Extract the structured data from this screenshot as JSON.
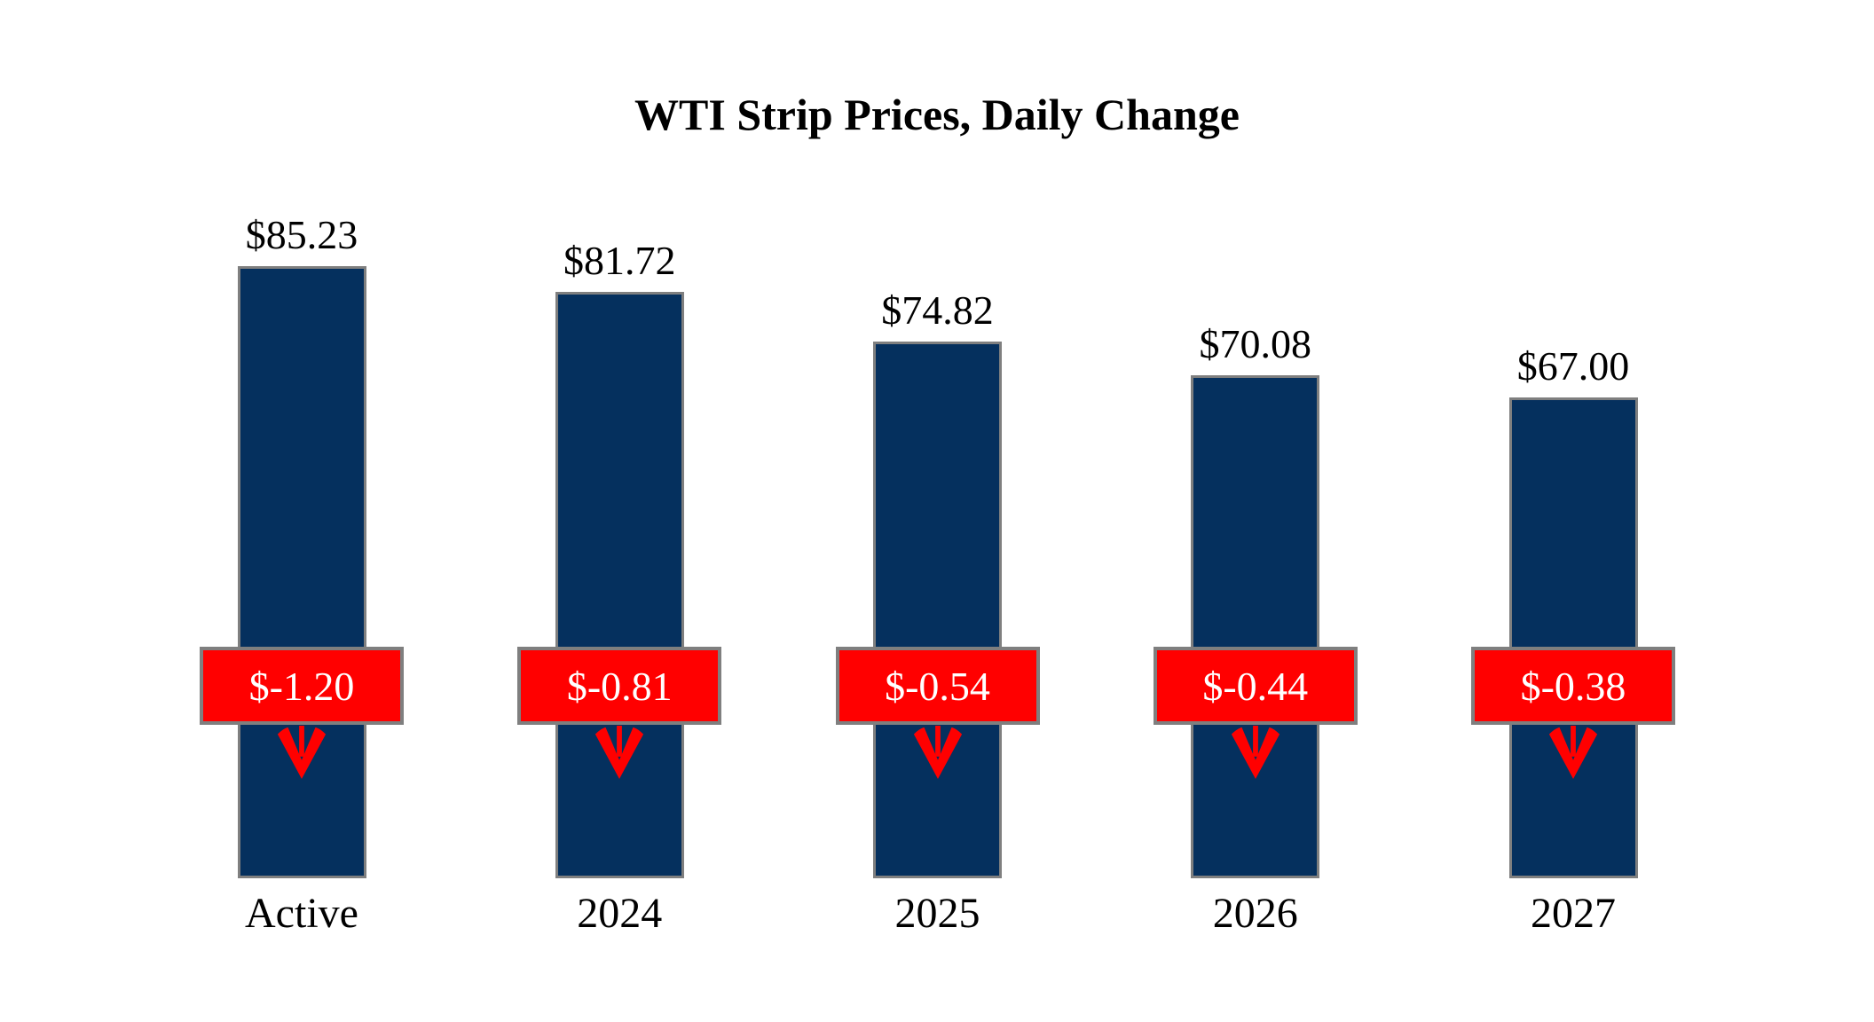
{
  "chart_data": {
    "type": "bar",
    "title": "WTI Strip Prices, Daily Change",
    "xlabel": "",
    "ylabel": "",
    "ylim": [
      0,
      90
    ],
    "grid": false,
    "legend_position": "none",
    "categories": [
      "Active",
      "2024",
      "2025",
      "2026",
      "2027"
    ],
    "series": [
      {
        "name": "Strip Price",
        "values": [
          85.23,
          81.72,
          74.82,
          70.08,
          67.0
        ]
      },
      {
        "name": "Daily Change",
        "values": [
          -1.2,
          -0.81,
          -0.54,
          -0.44,
          -0.38
        ]
      }
    ],
    "bars": [
      {
        "category": "Active",
        "price": 85.23,
        "price_label": "$85.23",
        "change": -1.2,
        "change_label": "$-1.20"
      },
      {
        "category": "2024",
        "price": 81.72,
        "price_label": "$81.72",
        "change": -0.81,
        "change_label": "$-0.81"
      },
      {
        "category": "2025",
        "price": 74.82,
        "price_label": "$74.82",
        "change": -0.54,
        "change_label": "$-0.54"
      },
      {
        "category": "2026",
        "price": 70.08,
        "price_label": "$70.08",
        "change": -0.44,
        "change_label": "$-0.44"
      },
      {
        "category": "2027",
        "price": 67.0,
        "price_label": "$67.00",
        "change": -0.38,
        "change_label": "$-0.38"
      }
    ]
  },
  "colors": {
    "bar_fill": "#05305e",
    "bar_border": "#7f7f7f",
    "badge_fill": "#ff0000",
    "badge_border": "#7f7f7f",
    "badge_text": "#ffffff",
    "arrow": "#ff0000",
    "title_text": "#000000",
    "label_text": "#000000",
    "background": "#ffffff"
  }
}
